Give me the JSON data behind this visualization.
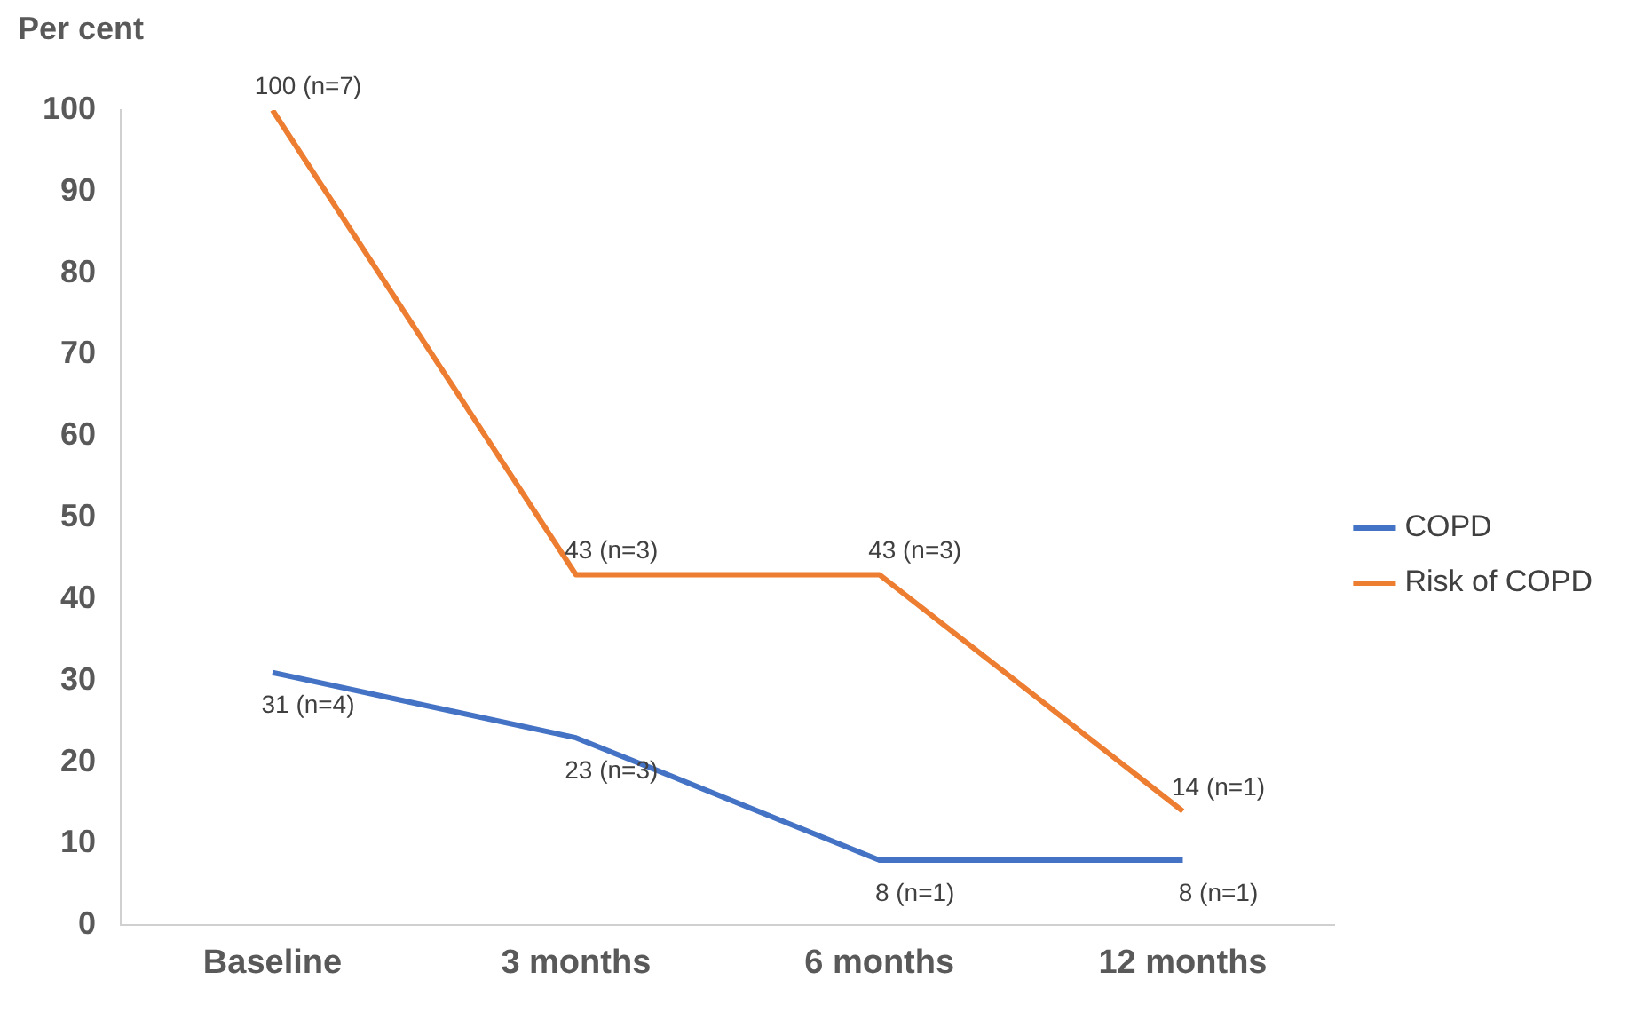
{
  "chart_data": {
    "type": "line",
    "ylabel": "Per cent",
    "categories": [
      "Baseline",
      "3 months",
      "6 months",
      "12 months"
    ],
    "series": [
      {
        "name": "COPD",
        "color": "#4472c4",
        "values": [
          31,
          23,
          8,
          8
        ],
        "value_labels": [
          "31 (n=4)",
          "23 (n=3)",
          "8 (n=1)",
          "8 (n=1)"
        ]
      },
      {
        "name": "Risk of COPD",
        "color": "#ed7d31",
        "values": [
          100,
          43,
          43,
          14
        ],
        "value_labels": [
          "100 (n=7)",
          "43 (n=3)",
          "43 (n=3)",
          "14 (n=1)"
        ]
      }
    ],
    "ylim": [
      0,
      100
    ],
    "yticks": [
      0,
      10,
      20,
      30,
      40,
      50,
      60,
      70,
      80,
      90,
      100
    ],
    "grid": false,
    "legend": "right",
    "marker": "none",
    "line_style": "solid"
  }
}
